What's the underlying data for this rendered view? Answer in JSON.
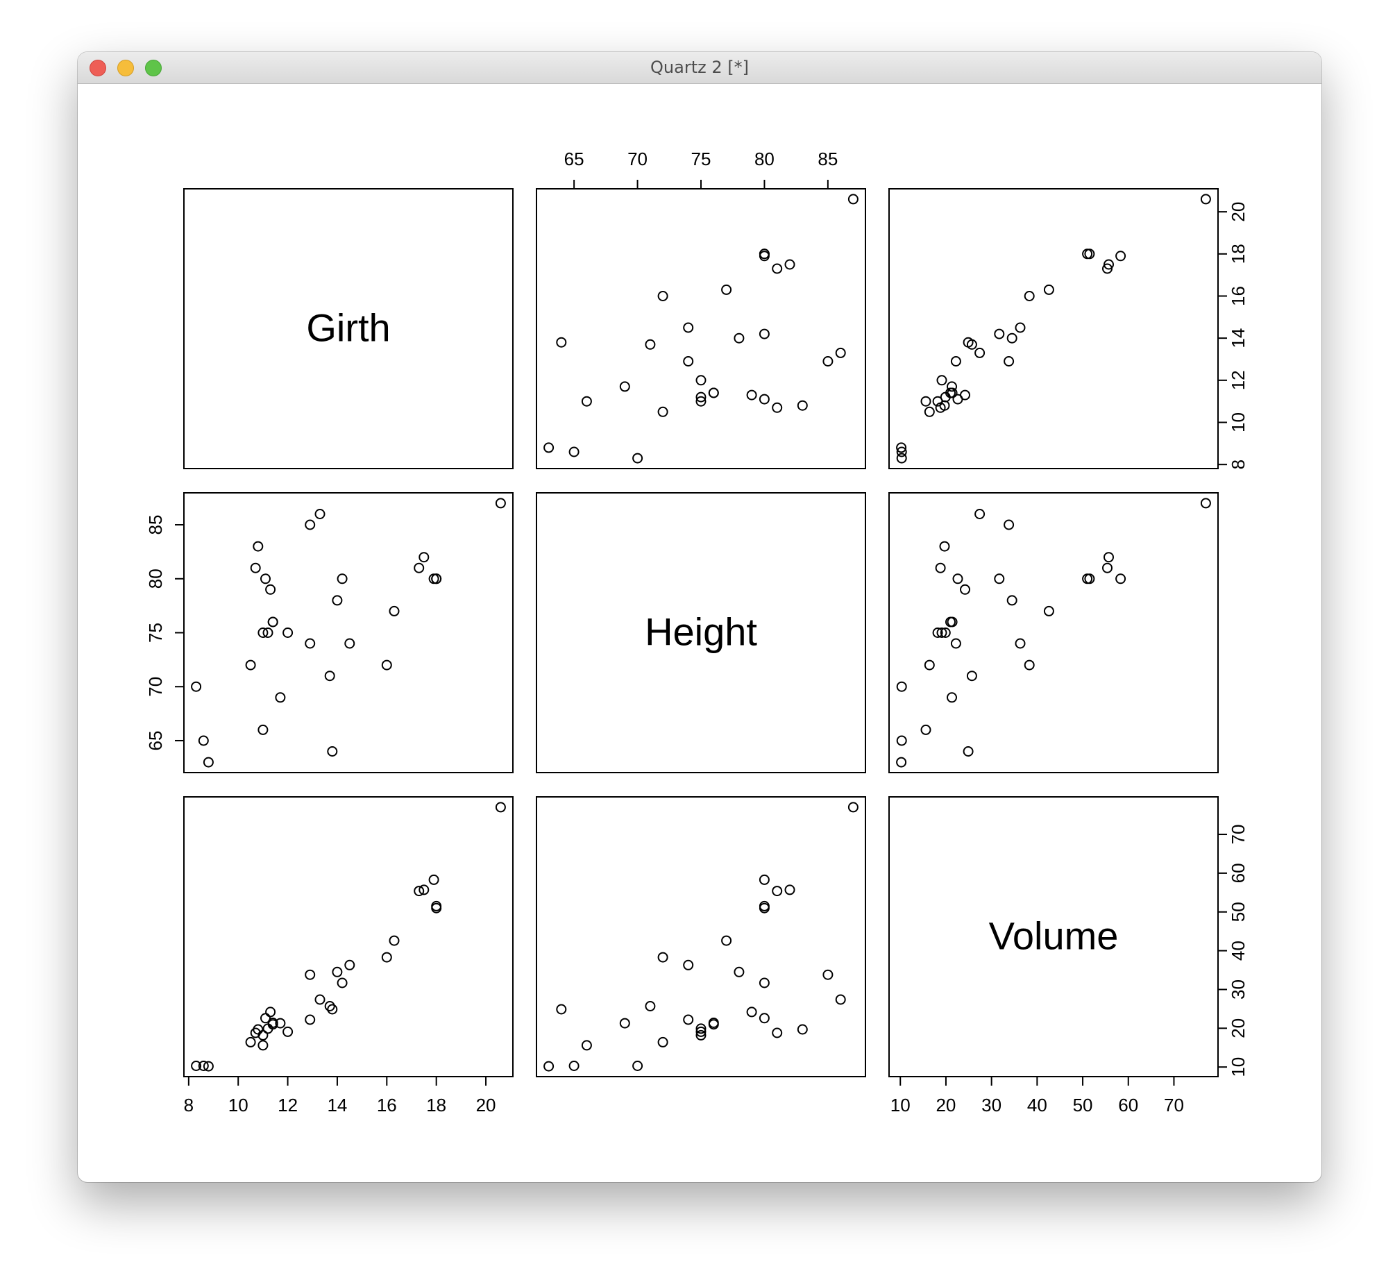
{
  "window": {
    "title": "Quartz 2 [*]",
    "buttons": [
      "close",
      "minimize",
      "zoom"
    ]
  },
  "chart_data": {
    "type": "scatter",
    "kind": "pairs scatterplot matrix",
    "variables": [
      "Girth",
      "Height",
      "Volume"
    ],
    "ranges": {
      "Girth": [
        8.3,
        20.6
      ],
      "Height": [
        63,
        87
      ],
      "Volume": [
        10.2,
        77.0
      ]
    },
    "ticks": {
      "Girth": [
        8,
        10,
        12,
        14,
        16,
        18,
        20
      ],
      "Height": [
        65,
        70,
        75,
        80,
        85
      ],
      "Volume": [
        10,
        20,
        30,
        40,
        50,
        60,
        70
      ]
    },
    "tick_placement": {
      "Girth": {
        "bottom": "col 0",
        "right": "row 0"
      },
      "Height": {
        "top": "col 1",
        "left": "row 1"
      },
      "Volume": {
        "bottom": "col 2",
        "right": "row 2"
      }
    },
    "marker": "open circle",
    "color": "#000000",
    "observations": {
      "Girth": [
        8.3,
        8.6,
        8.8,
        10.5,
        10.7,
        10.8,
        11.0,
        11.0,
        11.1,
        11.2,
        11.3,
        11.4,
        11.4,
        11.7,
        12.0,
        12.9,
        12.9,
        13.3,
        13.7,
        13.8,
        14.0,
        14.2,
        14.5,
        16.0,
        16.3,
        17.3,
        17.5,
        17.9,
        18.0,
        18.0,
        20.6
      ],
      "Height": [
        70,
        65,
        63,
        72,
        81,
        83,
        66,
        75,
        80,
        75,
        79,
        76,
        76,
        69,
        75,
        74,
        85,
        86,
        71,
        64,
        78,
        80,
        74,
        72,
        77,
        81,
        82,
        80,
        80,
        80,
        87
      ],
      "Volume": [
        10.3,
        10.3,
        10.2,
        16.4,
        18.8,
        19.7,
        15.6,
        18.2,
        22.6,
        19.9,
        24.2,
        21.0,
        21.4,
        21.3,
        19.1,
        22.2,
        33.8,
        27.4,
        25.7,
        24.9,
        34.5,
        31.7,
        36.3,
        38.3,
        42.6,
        55.4,
        55.7,
        58.3,
        51.5,
        51.0,
        77.0
      ]
    }
  }
}
